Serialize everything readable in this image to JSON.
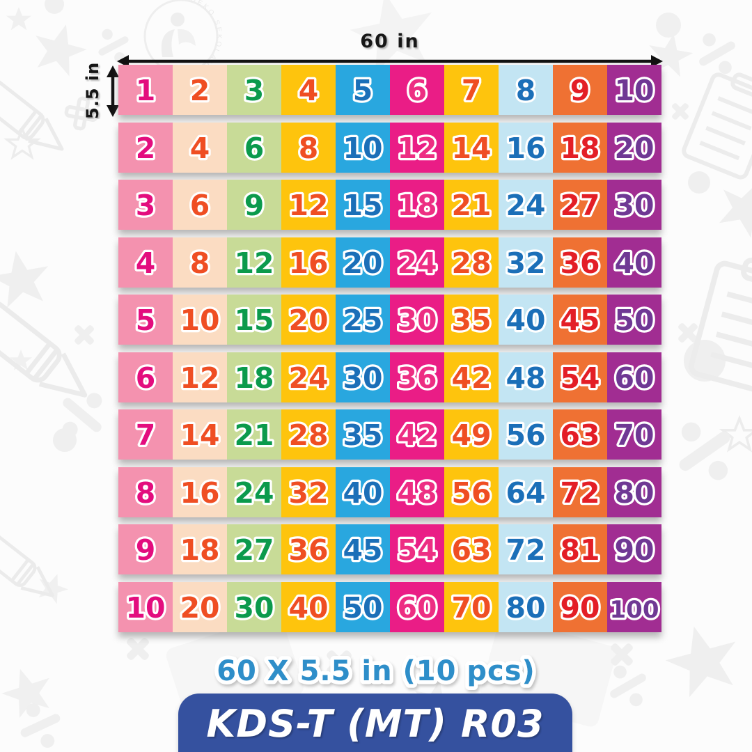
{
  "dimension_labels": {
    "width": "60 in",
    "height": "5.5 in"
  },
  "caption": "60 X 5.5 in (10 pcs)",
  "banner": {
    "code": "KDS-T (MT) R03",
    "bg_color": "#35519F"
  },
  "watermark": {
    "text": "DEKO SEKOLAH"
  },
  "colors": {
    "cell_bg": [
      "#F492AF",
      "#FBDCC2",
      "#C8DB97",
      "#FEC40D",
      "#29A7DF",
      "#EA1D86",
      "#FEC40D",
      "#C3E5F3",
      "#EF7133",
      "#A12D92"
    ],
    "number_colors": [
      "#E30D7E",
      "#EF4E23",
      "#0B9A4C",
      "#EF4E23",
      "#1B6FB8",
      "#ED2E83",
      "#EF4E23",
      "#1B6FB8",
      "#E31E26",
      "#6F3894"
    ],
    "caption_color": "#2E8EC9",
    "arrow_color": "#111111"
  },
  "chart_data": {
    "type": "table",
    "rows": [
      {
        "multiplier": 1,
        "values": [
          1,
          2,
          3,
          4,
          5,
          6,
          7,
          8,
          9,
          10
        ]
      },
      {
        "multiplier": 2,
        "values": [
          2,
          4,
          6,
          8,
          10,
          12,
          14,
          16,
          18,
          20
        ]
      },
      {
        "multiplier": 3,
        "values": [
          3,
          6,
          9,
          12,
          15,
          18,
          21,
          24,
          27,
          30
        ]
      },
      {
        "multiplier": 4,
        "values": [
          4,
          8,
          12,
          16,
          20,
          24,
          28,
          32,
          36,
          40
        ]
      },
      {
        "multiplier": 5,
        "values": [
          5,
          10,
          15,
          20,
          25,
          30,
          35,
          40,
          45,
          50
        ]
      },
      {
        "multiplier": 6,
        "values": [
          6,
          12,
          18,
          24,
          30,
          36,
          42,
          48,
          54,
          60
        ]
      },
      {
        "multiplier": 7,
        "values": [
          7,
          14,
          21,
          28,
          35,
          42,
          49,
          56,
          63,
          70
        ]
      },
      {
        "multiplier": 8,
        "values": [
          8,
          16,
          24,
          32,
          40,
          48,
          56,
          64,
          72,
          80
        ]
      },
      {
        "multiplier": 9,
        "values": [
          9,
          18,
          27,
          36,
          45,
          54,
          63,
          72,
          81,
          90
        ]
      },
      {
        "multiplier": 10,
        "values": [
          10,
          20,
          30,
          40,
          50,
          60,
          70,
          80,
          90,
          100
        ]
      }
    ]
  }
}
